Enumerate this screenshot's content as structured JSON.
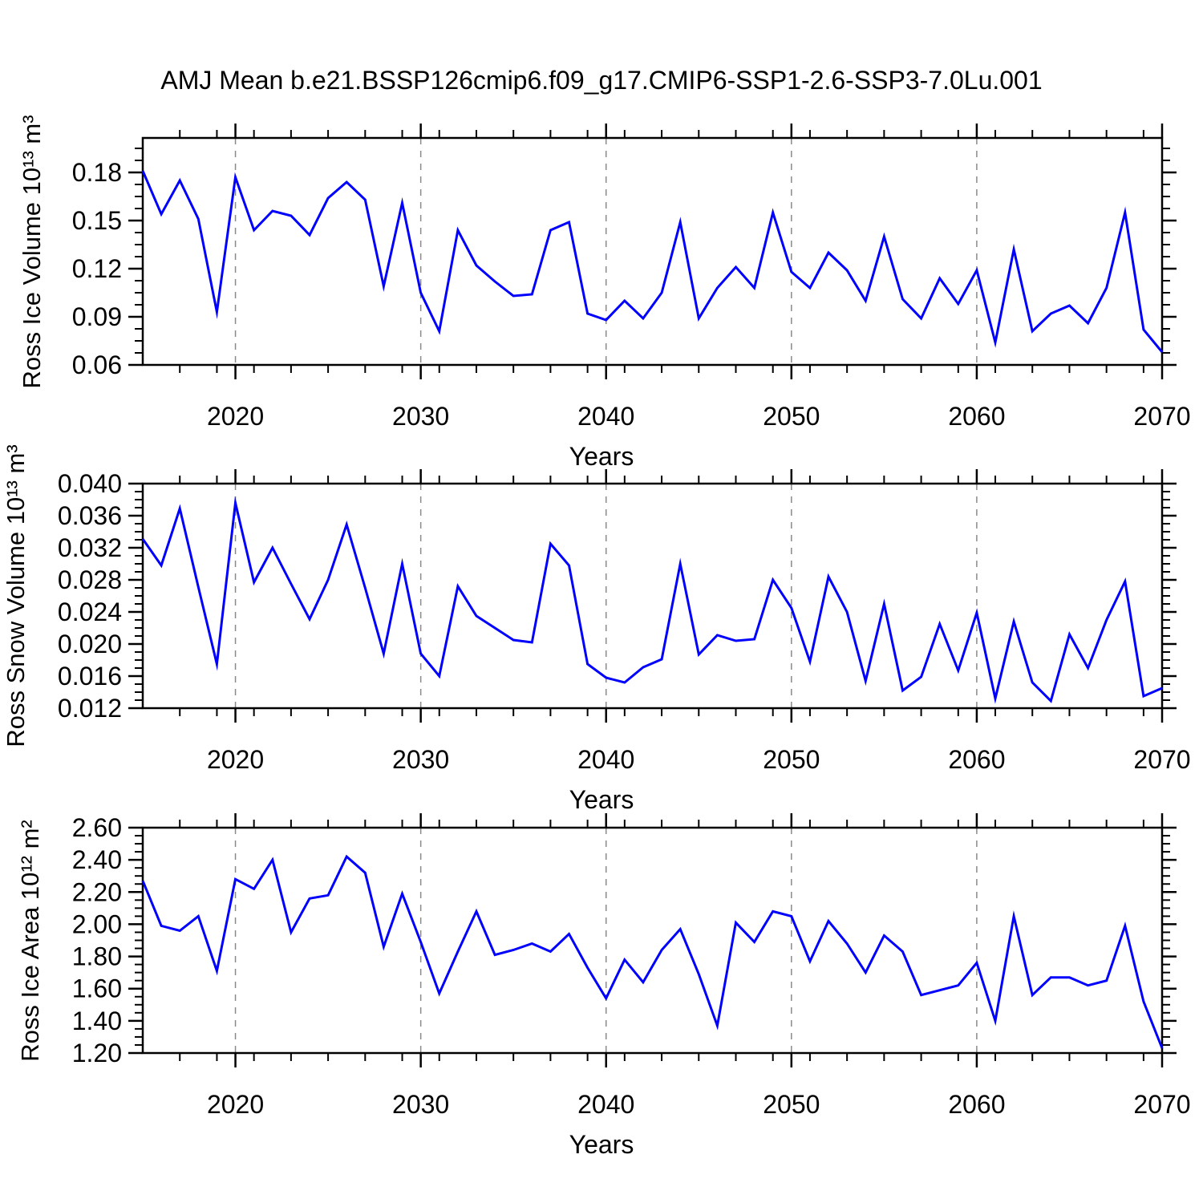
{
  "title": "AMJ Mean b.e21.BSSP126cmip6.f09_g17.CMIP6-SSP1-2.6-SSP3-7.0Lu.001",
  "colors": {
    "line": "#0000ff",
    "axis": "#000000",
    "gridline": "#8a8a8a",
    "background": "#ffffff",
    "text": "#000000"
  },
  "x_axis": {
    "label": "Years",
    "range": [
      2015,
      2070
    ],
    "major_ticks": [
      2020,
      2030,
      2040,
      2050,
      2060,
      2070
    ],
    "major_tick_labels": [
      "2020",
      "2030",
      "2040",
      "2050",
      "2060",
      "2070"
    ],
    "minor_step_years": 2,
    "dashed_gridlines": [
      2020,
      2030,
      2040,
      2050,
      2060
    ]
  },
  "chart_data": [
    {
      "type": "line",
      "name": "ross-ice-volume",
      "ylabel": "Ross Ice Volume 10¹³ m³",
      "ylim": [
        0.06,
        0.2015
      ],
      "ytick_values": [
        0.18,
        0.15,
        0.12,
        0.09,
        0.06
      ],
      "ytick_labels": [
        "0.18",
        "0.15",
        "0.12",
        "0.09",
        "0.06"
      ],
      "yminor_step": 0.0075,
      "x": [
        2015,
        2016,
        2017,
        2018,
        2019,
        2020,
        2021,
        2022,
        2023,
        2024,
        2025,
        2026,
        2027,
        2028,
        2029,
        2030,
        2031,
        2032,
        2033,
        2034,
        2035,
        2036,
        2037,
        2038,
        2039,
        2040,
        2041,
        2042,
        2043,
        2044,
        2045,
        2046,
        2047,
        2048,
        2049,
        2050,
        2051,
        2052,
        2053,
        2054,
        2055,
        2056,
        2057,
        2058,
        2059,
        2060,
        2061,
        2062,
        2063,
        2064,
        2065,
        2066,
        2067,
        2068,
        2069,
        2070
      ],
      "values": [
        0.181,
        0.154,
        0.175,
        0.151,
        0.093,
        0.177,
        0.144,
        0.156,
        0.153,
        0.141,
        0.164,
        0.174,
        0.163,
        0.109,
        0.161,
        0.105,
        0.081,
        0.144,
        0.122,
        0.112,
        0.103,
        0.104,
        0.144,
        0.149,
        0.092,
        0.088,
        0.1,
        0.089,
        0.105,
        0.149,
        0.089,
        0.108,
        0.121,
        0.108,
        0.155,
        0.118,
        0.108,
        0.13,
        0.119,
        0.1,
        0.14,
        0.101,
        0.089,
        0.114,
        0.098,
        0.119,
        0.074,
        0.132,
        0.081,
        0.092,
        0.097,
        0.086,
        0.108,
        0.155,
        0.082,
        0.068
      ]
    },
    {
      "type": "line",
      "name": "ross-snow-volume",
      "ylabel": "Ross Snow Volume 10¹³ m³",
      "ylim": [
        0.012,
        0.04
      ],
      "ytick_values": [
        0.04,
        0.036,
        0.032,
        0.028,
        0.024,
        0.02,
        0.016,
        0.012
      ],
      "ytick_labels": [
        "0.040",
        "0.036",
        "0.032",
        "0.028",
        "0.024",
        "0.020",
        "0.016",
        "0.012"
      ],
      "yminor_step": 0.001,
      "x": [
        2015,
        2016,
        2017,
        2018,
        2019,
        2020,
        2021,
        2022,
        2023,
        2024,
        2025,
        2026,
        2027,
        2028,
        2029,
        2030,
        2031,
        2032,
        2033,
        2034,
        2035,
        2036,
        2037,
        2038,
        2039,
        2040,
        2041,
        2042,
        2043,
        2044,
        2045,
        2046,
        2047,
        2048,
        2049,
        2050,
        2051,
        2052,
        2053,
        2054,
        2055,
        2056,
        2057,
        2058,
        2059,
        2060,
        2061,
        2062,
        2063,
        2064,
        2065,
        2066,
        2067,
        2068,
        2069,
        2070
      ],
      "values": [
        0.0331,
        0.0298,
        0.0369,
        0.0271,
        0.0175,
        0.0376,
        0.0277,
        0.032,
        0.0275,
        0.0231,
        0.028,
        0.0349,
        0.027,
        0.0188,
        0.03,
        0.0188,
        0.016,
        0.0272,
        0.0235,
        0.022,
        0.0205,
        0.0202,
        0.0325,
        0.0298,
        0.0175,
        0.0158,
        0.0152,
        0.0171,
        0.0181,
        0.03,
        0.0187,
        0.0211,
        0.0204,
        0.0206,
        0.028,
        0.0245,
        0.0178,
        0.0284,
        0.024,
        0.0154,
        0.025,
        0.0142,
        0.0159,
        0.0225,
        0.0167,
        0.0239,
        0.0132,
        0.0228,
        0.0152,
        0.0129,
        0.0212,
        0.017,
        0.023,
        0.0278,
        0.0135,
        0.0145
      ]
    },
    {
      "type": "line",
      "name": "ross-ice-area",
      "ylabel": "Ross Ice Area 10¹² m²",
      "ylim": [
        1.2,
        2.6
      ],
      "ytick_values": [
        2.6,
        2.4,
        2.2,
        2.0,
        1.8,
        1.6,
        1.4,
        1.2
      ],
      "ytick_labels": [
        "2.60",
        "2.40",
        "2.20",
        "2.00",
        "1.80",
        "1.60",
        "1.40",
        "1.20"
      ],
      "yminor_step": 0.05,
      "x": [
        2015,
        2016,
        2017,
        2018,
        2019,
        2020,
        2021,
        2022,
        2023,
        2024,
        2025,
        2026,
        2027,
        2028,
        2029,
        2030,
        2031,
        2032,
        2033,
        2034,
        2035,
        2036,
        2037,
        2038,
        2039,
        2040,
        2041,
        2042,
        2043,
        2044,
        2045,
        2046,
        2047,
        2048,
        2049,
        2050,
        2051,
        2052,
        2053,
        2054,
        2055,
        2056,
        2057,
        2058,
        2059,
        2060,
        2061,
        2062,
        2063,
        2064,
        2065,
        2066,
        2067,
        2068,
        2069,
        2070
      ],
      "values": [
        2.27,
        1.99,
        1.96,
        2.05,
        1.71,
        2.28,
        2.22,
        2.4,
        1.95,
        2.16,
        2.18,
        2.42,
        2.32,
        1.86,
        2.19,
        1.89,
        1.57,
        1.83,
        2.08,
        1.81,
        1.84,
        1.88,
        1.83,
        1.94,
        1.73,
        1.54,
        1.78,
        1.64,
        1.84,
        1.97,
        1.69,
        1.37,
        2.01,
        1.89,
        2.08,
        2.05,
        1.77,
        2.02,
        1.88,
        1.7,
        1.93,
        1.83,
        1.56,
        1.59,
        1.62,
        1.76,
        1.4,
        2.05,
        1.56,
        1.67,
        1.67,
        1.62,
        1.65,
        1.99,
        1.52,
        1.23
      ]
    }
  ]
}
